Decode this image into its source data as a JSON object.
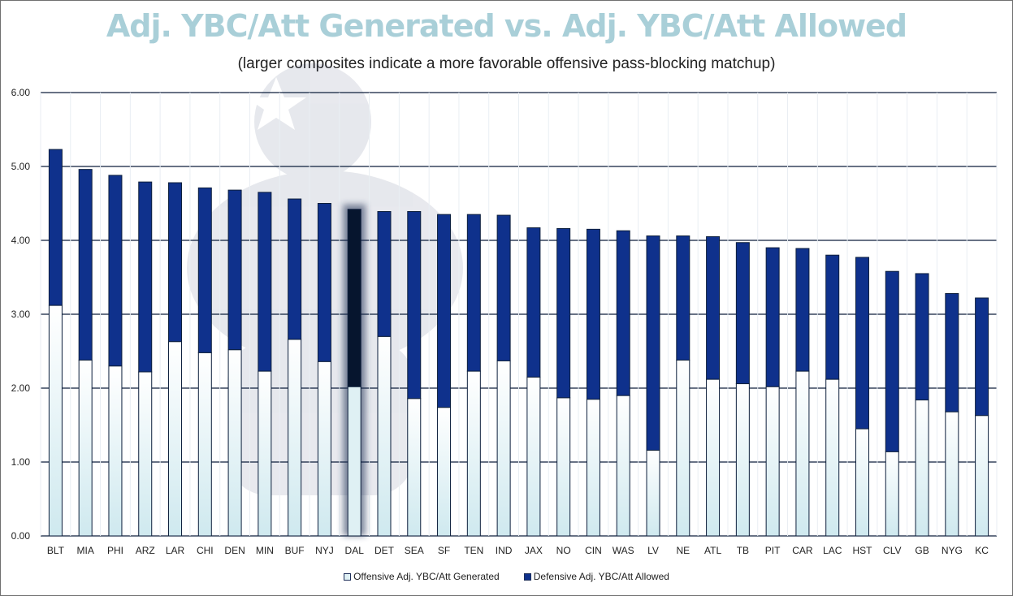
{
  "chart_data": {
    "type": "bar",
    "stacked": true,
    "title": "Adj. YBC/Att Generated vs. Adj. YBC/Att Allowed",
    "subtitle": "(larger composites indicate a more favorable offensive pass-blocking matchup)",
    "xlabel": "",
    "ylabel": "",
    "ylim": [
      0,
      6
    ],
    "yticks": [
      "0.00",
      "1.00",
      "2.00",
      "3.00",
      "4.00",
      "5.00",
      "6.00"
    ],
    "grid": true,
    "legend_position": "bottom",
    "highlight_category": "DAL",
    "categories": [
      "BLT",
      "MIA",
      "PHI",
      "ARZ",
      "LAR",
      "CHI",
      "DEN",
      "MIN",
      "BUF",
      "NYJ",
      "DAL",
      "DET",
      "SEA",
      "SF",
      "TEN",
      "IND",
      "JAX",
      "NO",
      "CIN",
      "WAS",
      "LV",
      "NE",
      "ATL",
      "TB",
      "PIT",
      "CAR",
      "LAC",
      "HST",
      "CLV",
      "GB",
      "NYG",
      "KC"
    ],
    "series": [
      {
        "name": "Offensive Adj. YBC/Att Generated",
        "color": "#dff0f4",
        "values": [
          3.12,
          2.38,
          2.3,
          2.22,
          2.63,
          2.48,
          2.52,
          2.23,
          2.66,
          2.36,
          2.02,
          2.7,
          1.86,
          1.74,
          2.23,
          2.37,
          2.15,
          1.87,
          1.85,
          1.9,
          1.16,
          2.38,
          2.12,
          2.06,
          2.02,
          2.23,
          2.12,
          1.45,
          1.14,
          1.84,
          1.68,
          1.63
        ]
      },
      {
        "name": "Defensive Adj. YBC/Att Allowed",
        "color": "#0f318c",
        "values": [
          2.11,
          2.58,
          2.58,
          2.57,
          2.15,
          2.23,
          2.16,
          2.42,
          1.9,
          2.14,
          2.4,
          1.69,
          2.53,
          2.61,
          2.12,
          1.97,
          2.02,
          2.29,
          2.3,
          2.23,
          2.9,
          1.68,
          1.93,
          1.91,
          1.88,
          1.66,
          1.68,
          2.32,
          2.44,
          1.71,
          1.6,
          1.59
        ]
      }
    ]
  },
  "colors": {
    "title": "#a9cfd8",
    "gridline": "#0d1f3c",
    "bar_outline": "#0d1f3c",
    "highlight_top": "#06152e",
    "highlight_bottom": "#dff0f4"
  }
}
